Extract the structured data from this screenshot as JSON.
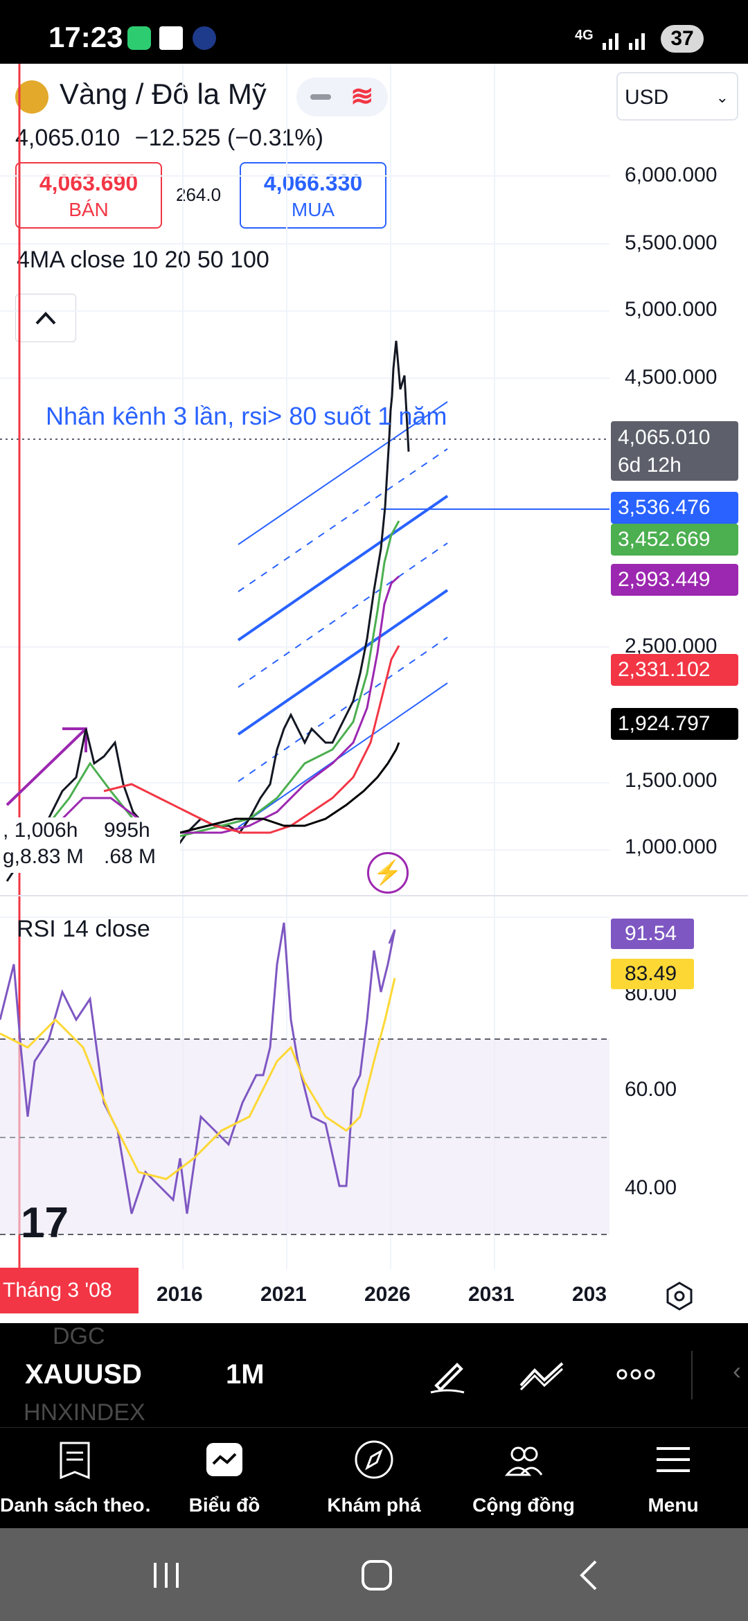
{
  "status_bar": {
    "time": "17:23",
    "network": "4G",
    "battery": "37"
  },
  "header": {
    "symbol_title": "Vàng / Đô la Mỹ",
    "price": "4,065.010",
    "change": "−12.525",
    "change_pct": "(−0.31%)",
    "sell_price": "4,063.690",
    "sell_label": "BÁN",
    "spread": "264.0",
    "buy_price": "4,066.330",
    "buy_label": "MUA",
    "currency": "USD"
  },
  "indicators": {
    "ma_label": "4MA close 10 20 50 100",
    "rsi_label": "RSI 14 close"
  },
  "annotation": "Nhân kênh 3 lần, rsi> 80 suốt 1 năm",
  "price_axis": [
    "6,000.000",
    "5,500.000",
    "5,000.000",
    "4,500.000",
    "2,500.000",
    "1,500.000",
    "1,000.000"
  ],
  "price_badges": [
    {
      "value": "4,065.010",
      "sub": "6d 12h",
      "color": "#5d606b"
    },
    {
      "value": "3,536.476",
      "color": "#2962ff"
    },
    {
      "value": "3,452.669",
      "color": "#4caf50"
    },
    {
      "value": "2,993.449",
      "color": "#9c27b0"
    },
    {
      "value": "2,331.102",
      "color": "#f23645"
    },
    {
      "value": "1,924.797",
      "color": "#000000"
    }
  ],
  "tooltip": {
    "line1": ", 1,006h",
    "line1b": "995h",
    "line2": "g,8.83 M",
    "line2b": ".68 M"
  },
  "rsi_axis": [
    "80.00",
    "60.00",
    "40.00"
  ],
  "rsi_badges": [
    {
      "value": "91.54",
      "color": "#7e57c2"
    },
    {
      "value": "83.49",
      "color": "#fdd835"
    }
  ],
  "x_axis": [
    "2016",
    "2021",
    "2026",
    "2031",
    "203"
  ],
  "date_badge": "Tháng 3 '08",
  "toolbar": {
    "ghost_top": "DGC",
    "symbol": "XAUUSD",
    "interval": "1M",
    "ghost_bottom": "HNXINDEX"
  },
  "bottom_nav": [
    "Danh sách theo…",
    "Biểu đồ",
    "Khám phá",
    "Cộng đồng",
    "Menu"
  ],
  "colors": {
    "ma10": "#4caf50",
    "ma20": "#9c27b0",
    "ma50": "#f23645",
    "ma100": "#000000",
    "channel": "#2962ff",
    "rsi": "#7e57c2",
    "rsi_ma": "#fdd835"
  }
}
